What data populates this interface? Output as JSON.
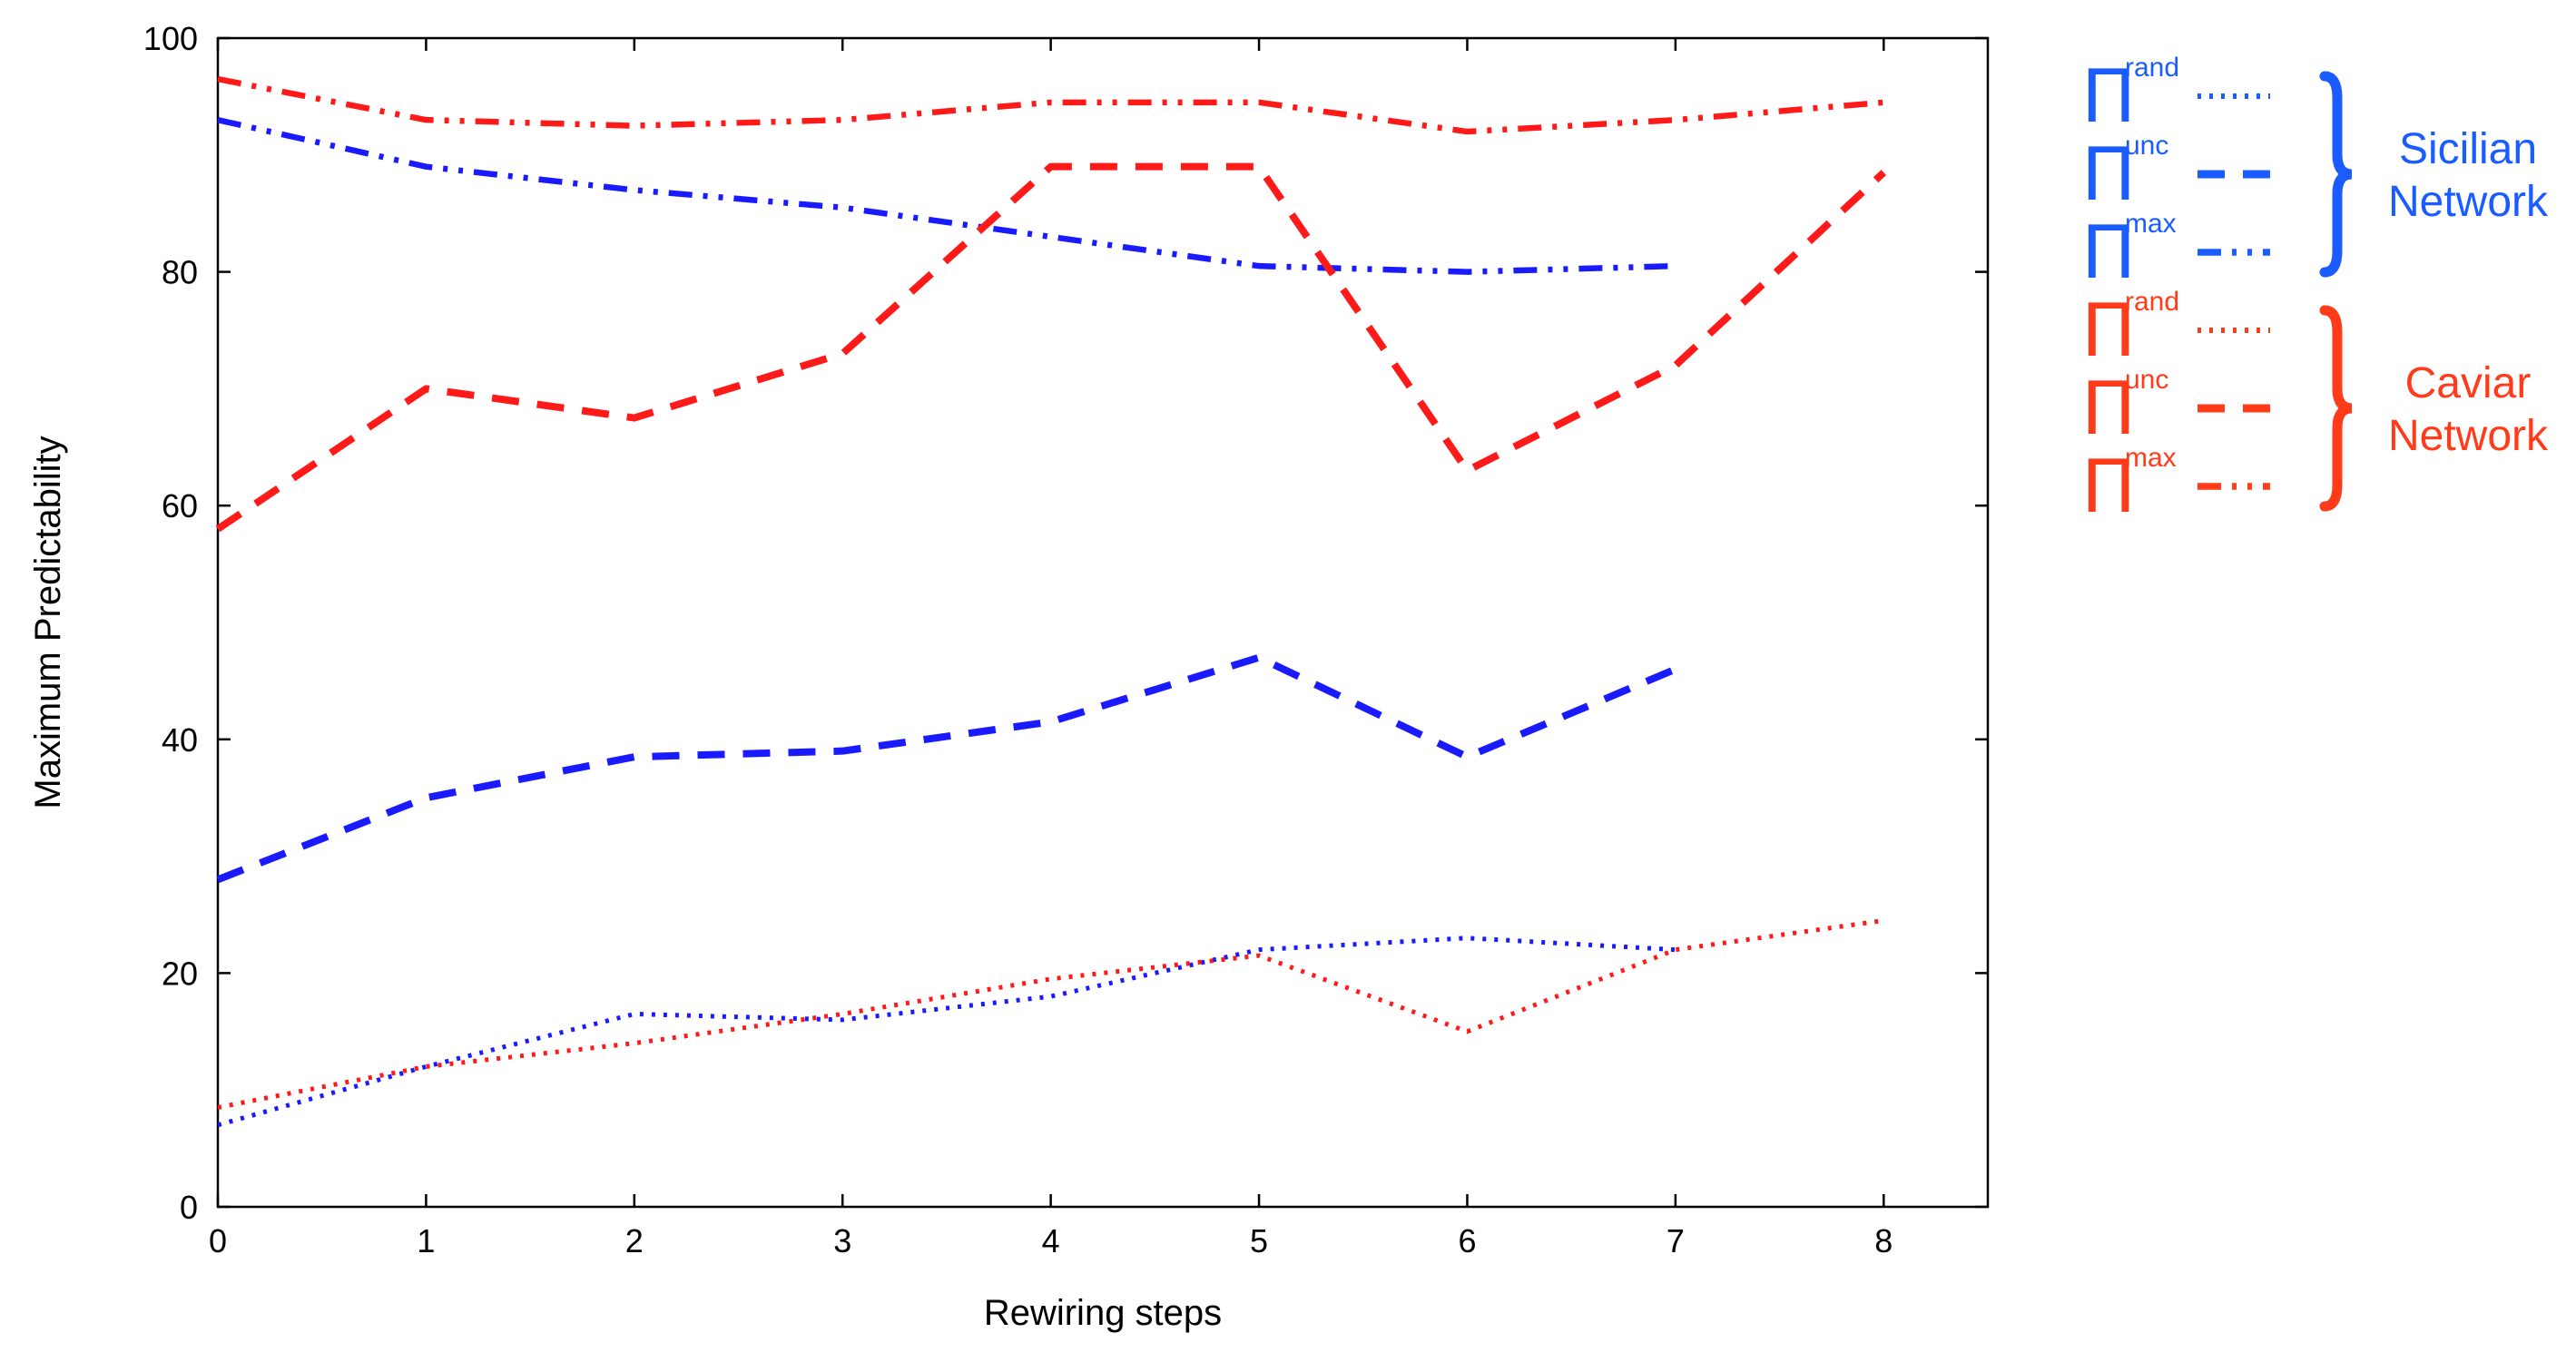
{
  "chart_data": {
    "type": "line",
    "title": "",
    "xlabel": "Rewiring steps",
    "ylabel": "Maximum Predictability",
    "xlim": [
      0,
      8.5
    ],
    "ylim": [
      0,
      100
    ],
    "xticks": [
      "0",
      "1",
      "2",
      "3",
      "4",
      "5",
      "6",
      "7",
      "8"
    ],
    "yticks": [
      "0",
      "20",
      "40",
      "60",
      "80",
      "100"
    ],
    "grid": false,
    "legend_position": "right",
    "series": [
      {
        "name": "Sicilian Π rand",
        "network": "Sicilian",
        "measure": "rand",
        "style": "dotted",
        "color": "#1a1aff",
        "x": [
          0,
          1,
          2,
          3,
          4,
          5,
          6,
          7
        ],
        "values": [
          7,
          12,
          16.5,
          16,
          18,
          22,
          23,
          22
        ]
      },
      {
        "name": "Sicilian Π unc",
        "network": "Sicilian",
        "measure": "unc",
        "style": "dashed",
        "color": "#1a1aff",
        "x": [
          0,
          1,
          2,
          3,
          4,
          5,
          6,
          7
        ],
        "values": [
          28,
          35,
          38.5,
          39,
          41.5,
          47,
          38.5,
          46
        ]
      },
      {
        "name": "Sicilian Π max",
        "network": "Sicilian",
        "measure": "max",
        "style": "dashdotdot",
        "color": "#1a1aff",
        "x": [
          0,
          1,
          2,
          3,
          4,
          5,
          6,
          7
        ],
        "values": [
          93,
          89,
          87,
          85.5,
          83,
          80.5,
          80,
          80.5
        ]
      },
      {
        "name": "Caviar Π rand",
        "network": "Caviar",
        "measure": "rand",
        "style": "dotted",
        "color": "#ff1a1a",
        "x": [
          0,
          1,
          2,
          3,
          4,
          5,
          6,
          7,
          8
        ],
        "values": [
          8.5,
          12,
          14,
          16.5,
          19.5,
          21.5,
          15,
          22,
          24.5
        ]
      },
      {
        "name": "Caviar Π unc",
        "network": "Caviar",
        "measure": "unc",
        "style": "dashed",
        "color": "#ff1a1a",
        "x": [
          0,
          1,
          2,
          3,
          4,
          5,
          6,
          7,
          8
        ],
        "values": [
          58,
          70,
          67.5,
          73,
          89,
          89,
          63,
          72,
          88.5
        ]
      },
      {
        "name": "Caviar Π max",
        "network": "Caviar",
        "measure": "max",
        "style": "dashdotdot",
        "color": "#ff1a1a",
        "x": [
          0,
          1,
          2,
          3,
          4,
          5,
          6,
          7,
          8
        ],
        "values": [
          96.5,
          93,
          92.5,
          93,
          94.5,
          94.5,
          92,
          93,
          94.5
        ]
      }
    ]
  },
  "legend": {
    "symbol": "Π",
    "groups": [
      {
        "label_line1": "Sicilian",
        "label_line2": "Network",
        "color": "#1a5cff",
        "entries": [
          {
            "sup": "rand",
            "style": "dotted"
          },
          {
            "sup": "unc",
            "style": "dashed"
          },
          {
            "sup": "max",
            "style": "dashdotdot"
          }
        ]
      },
      {
        "label_line1": "Caviar",
        "label_line2": "Network",
        "color": "#ff3b1a",
        "entries": [
          {
            "sup": "rand",
            "style": "dotted"
          },
          {
            "sup": "unc",
            "style": "dashed"
          },
          {
            "sup": "max",
            "style": "dashdotdot"
          }
        ]
      }
    ]
  }
}
